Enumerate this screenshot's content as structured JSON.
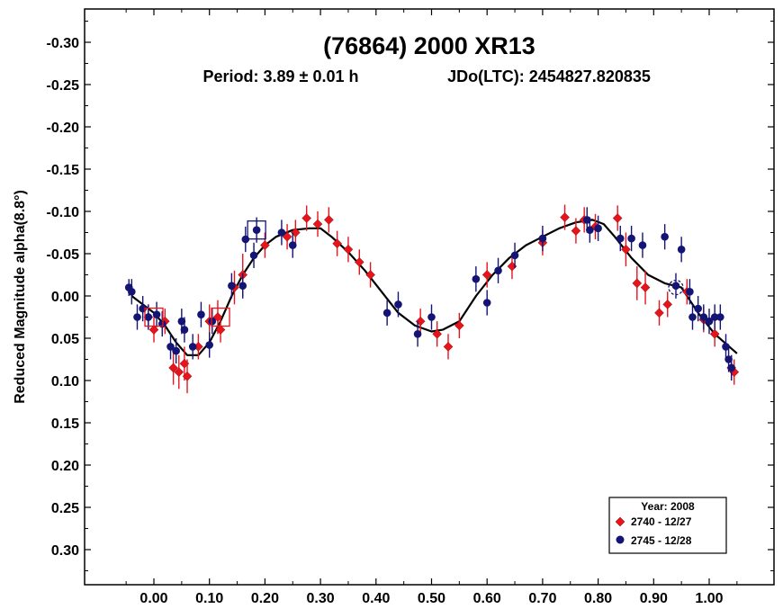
{
  "chart_data": {
    "type": "scatter",
    "title": "(76864) 2000 XR13",
    "period_text": "Period: 3.89 ± 0.01 h",
    "epoch_text": "JDo(LTC): 2454827.820835",
    "xlabel": "",
    "ylabel": "Reduced Magnitude alpha(8.8°)",
    "xlim": [
      -0.12,
      1.12
    ],
    "ylim": [
      -0.34,
      0.34
    ],
    "y_inverted": true,
    "x_ticks": [
      "0.00",
      "0.10",
      "0.20",
      "0.30",
      "0.40",
      "0.50",
      "0.60",
      "0.70",
      "0.80",
      "0.90",
      "1.00"
    ],
    "x_tick_values": [
      0,
      0.1,
      0.2,
      0.3,
      0.4,
      0.5,
      0.6,
      0.7,
      0.8,
      0.9,
      1.0
    ],
    "y_ticks": [
      "-0.30",
      "-0.25",
      "-0.20",
      "-0.15",
      "-0.10",
      "-0.05",
      "0.00",
      "0.05",
      "0.10",
      "0.15",
      "0.20",
      "0.25",
      "0.30"
    ],
    "y_tick_values": [
      -0.3,
      -0.25,
      -0.2,
      -0.15,
      -0.1,
      -0.05,
      0.0,
      0.05,
      0.1,
      0.15,
      0.2,
      0.25,
      0.3
    ],
    "grid": false,
    "legend": {
      "placement": "bottom-right",
      "title": "Year: 2008",
      "entries": [
        "2740 - 12/27",
        "2745 - 12/28"
      ]
    },
    "series": [
      {
        "name": "2740 - 12/27",
        "color": "#e8141c",
        "marker": "diamond",
        "points": [
          [
            -0.01,
            0.025,
            0.015
          ],
          [
            0.0,
            0.04,
            0.015
          ],
          [
            0.02,
            0.03,
            0.015
          ],
          [
            0.035,
            0.085,
            0.02
          ],
          [
            0.045,
            0.09,
            0.02
          ],
          [
            0.055,
            0.08,
            0.02
          ],
          [
            0.06,
            0.095,
            0.02
          ],
          [
            0.08,
            0.06,
            0.015
          ],
          [
            0.1,
            0.03,
            0.02
          ],
          [
            0.115,
            0.025,
            0.02
          ],
          [
            0.12,
            0.04,
            0.015
          ],
          [
            0.145,
            -0.01,
            0.02
          ],
          [
            0.16,
            -0.025,
            0.025
          ],
          [
            0.2,
            -0.06,
            0.015
          ],
          [
            0.24,
            -0.07,
            0.015
          ],
          [
            0.255,
            -0.075,
            0.015
          ],
          [
            0.275,
            -0.092,
            0.015
          ],
          [
            0.295,
            -0.085,
            0.015
          ],
          [
            0.315,
            -0.09,
            0.015
          ],
          [
            0.33,
            -0.062,
            0.015
          ],
          [
            0.35,
            -0.055,
            0.015
          ],
          [
            0.37,
            -0.04,
            0.015
          ],
          [
            0.39,
            -0.025,
            0.015
          ],
          [
            0.48,
            0.03,
            0.015
          ],
          [
            0.51,
            0.045,
            0.015
          ],
          [
            0.53,
            0.06,
            0.015
          ],
          [
            0.55,
            0.035,
            0.015
          ],
          [
            0.6,
            -0.025,
            0.015
          ],
          [
            0.645,
            -0.035,
            0.015
          ],
          [
            0.7,
            -0.063,
            0.015
          ],
          [
            0.74,
            -0.093,
            0.015
          ],
          [
            0.76,
            -0.077,
            0.015
          ],
          [
            0.775,
            -0.09,
            0.015
          ],
          [
            0.795,
            -0.082,
            0.015
          ],
          [
            0.835,
            -0.092,
            0.015
          ],
          [
            0.85,
            -0.055,
            0.02
          ],
          [
            0.87,
            -0.015,
            0.02
          ],
          [
            0.885,
            -0.01,
            0.02
          ],
          [
            0.91,
            0.02,
            0.015
          ],
          [
            0.925,
            0.01,
            0.015
          ],
          [
            0.96,
            -0.005,
            0.015
          ],
          [
            0.99,
            0.028,
            0.015
          ],
          [
            1.01,
            0.045,
            0.015
          ],
          [
            1.04,
            0.085,
            0.015
          ],
          [
            1.045,
            0.09,
            0.015
          ]
        ]
      },
      {
        "name": "2745 - 12/28",
        "color": "#141474",
        "marker": "circle",
        "points": [
          [
            -0.045,
            -0.01,
            0.01
          ],
          [
            -0.04,
            -0.005,
            0.015
          ],
          [
            -0.03,
            0.025,
            0.015
          ],
          [
            -0.02,
            0.015,
            0.015
          ],
          [
            -0.01,
            0.025,
            0.015
          ],
          [
            0.005,
            0.022,
            0.015
          ],
          [
            0.015,
            0.033,
            0.015
          ],
          [
            0.03,
            0.06,
            0.015
          ],
          [
            0.04,
            0.065,
            0.015
          ],
          [
            0.05,
            0.03,
            0.015
          ],
          [
            0.055,
            0.04,
            0.015
          ],
          [
            0.07,
            0.06,
            0.015
          ],
          [
            0.085,
            0.022,
            0.015
          ],
          [
            0.1,
            0.058,
            0.015
          ],
          [
            0.105,
            0.03,
            0.015
          ],
          [
            0.14,
            -0.012,
            0.015
          ],
          [
            0.16,
            -0.012,
            0.015
          ],
          [
            0.165,
            -0.067,
            0.015
          ],
          [
            0.18,
            -0.048,
            0.015
          ],
          [
            0.185,
            -0.078,
            0.015
          ],
          [
            0.23,
            -0.075,
            0.015
          ],
          [
            0.25,
            -0.06,
            0.015
          ],
          [
            0.42,
            0.02,
            0.015
          ],
          [
            0.44,
            0.01,
            0.015
          ],
          [
            0.475,
            0.045,
            0.015
          ],
          [
            0.5,
            0.025,
            0.015
          ],
          [
            0.58,
            -0.02,
            0.015
          ],
          [
            0.6,
            0.008,
            0.015
          ],
          [
            0.62,
            -0.03,
            0.015
          ],
          [
            0.65,
            -0.048,
            0.015
          ],
          [
            0.7,
            -0.068,
            0.015
          ],
          [
            0.78,
            -0.09,
            0.015
          ],
          [
            0.785,
            -0.078,
            0.015
          ],
          [
            0.8,
            -0.08,
            0.015
          ],
          [
            0.84,
            -0.068,
            0.015
          ],
          [
            0.86,
            -0.068,
            0.015
          ],
          [
            0.88,
            -0.06,
            0.015
          ],
          [
            0.92,
            -0.07,
            0.015
          ],
          [
            0.94,
            -0.012,
            0.015
          ],
          [
            0.95,
            -0.055,
            0.015
          ],
          [
            0.965,
            -0.005,
            0.015
          ],
          [
            0.97,
            0.025,
            0.015
          ],
          [
            0.98,
            0.015,
            0.015
          ],
          [
            0.99,
            0.025,
            0.015
          ],
          [
            1.0,
            0.03,
            0.015
          ],
          [
            1.01,
            0.025,
            0.015
          ],
          [
            1.02,
            0.025,
            0.015
          ],
          [
            1.03,
            0.06,
            0.015
          ],
          [
            1.035,
            0.075,
            0.015
          ],
          [
            1.04,
            0.085,
            0.015
          ]
        ]
      }
    ],
    "fit_curve": {
      "color": "#000000",
      "x": [
        -0.04,
        0.0,
        0.02,
        0.04,
        0.06,
        0.08,
        0.1,
        0.12,
        0.14,
        0.16,
        0.18,
        0.2,
        0.22,
        0.25,
        0.28,
        0.3,
        0.32,
        0.35,
        0.38,
        0.41,
        0.44,
        0.47,
        0.5,
        0.52,
        0.55,
        0.58,
        0.61,
        0.64,
        0.67,
        0.7,
        0.73,
        0.76,
        0.79,
        0.81,
        0.83,
        0.86,
        0.89,
        0.92,
        0.95,
        0.98,
        1.01,
        1.05
      ],
      "y": [
        0.0,
        0.02,
        0.035,
        0.055,
        0.07,
        0.07,
        0.055,
        0.03,
        0.0,
        -0.025,
        -0.045,
        -0.06,
        -0.07,
        -0.078,
        -0.08,
        -0.08,
        -0.07,
        -0.052,
        -0.03,
        -0.005,
        0.02,
        0.035,
        0.042,
        0.04,
        0.03,
        0.0,
        -0.025,
        -0.045,
        -0.06,
        -0.07,
        -0.08,
        -0.087,
        -0.09,
        -0.085,
        -0.07,
        -0.045,
        -0.025,
        -0.015,
        -0.01,
        0.02,
        0.045,
        0.068
      ]
    },
    "annotations": [
      {
        "shape": "square",
        "color": "#e8141c",
        "x": 0.0,
        "y": 0.025
      },
      {
        "shape": "square",
        "color": "#e8141c",
        "x": 0.12,
        "y": 0.025
      },
      {
        "shape": "square",
        "color": "#141474",
        "x": 0.185,
        "y": -0.078
      },
      {
        "shape": "dashed-circle",
        "color": "#141474",
        "x": 0.94,
        "y": -0.01
      }
    ]
  }
}
